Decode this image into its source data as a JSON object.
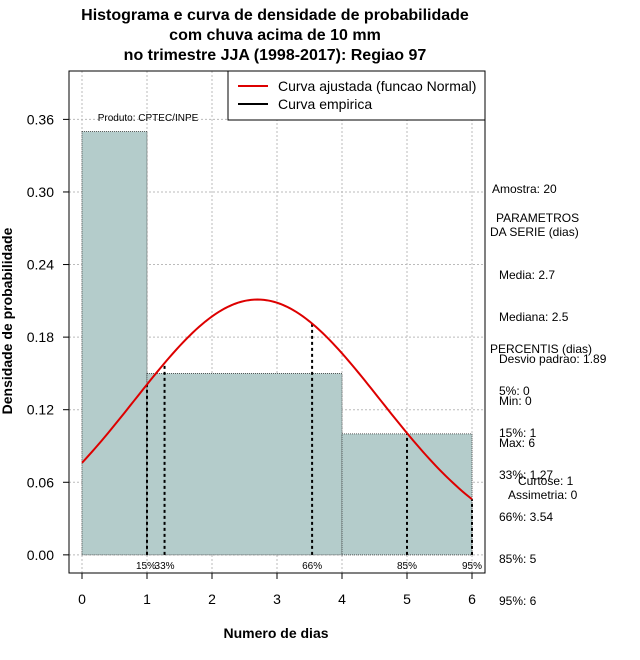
{
  "chart_data": {
    "type": "histogram",
    "title_lines": [
      "Histograma e curva de densidade de probabilidade",
      "com chuva acima de 10 mm",
      "no trimestre JJA (1998-2017): Regiao 97"
    ],
    "xlabel": "Numero de dias",
    "ylabel": "Densidade de probabilidade",
    "xlim": [
      -0.2,
      6.2
    ],
    "ylim": [
      -0.015,
      0.4
    ],
    "x_ticks": [
      0,
      1,
      2,
      3,
      4,
      5,
      6
    ],
    "y_ticks": [
      0.0,
      0.06,
      0.12,
      0.18,
      0.24,
      0.3,
      0.36
    ],
    "y_tick_labels": [
      "0.00",
      "0.06",
      "0.12",
      "0.18",
      "0.24",
      "0.30",
      "0.36"
    ],
    "grid": true,
    "bins": [
      {
        "from": 0,
        "to": 1,
        "density": 0.35
      },
      {
        "from": 1,
        "to": 4,
        "density": 0.15
      },
      {
        "from": 4,
        "to": 6,
        "density": 0.1
      }
    ],
    "normal_fit": {
      "mean": 2.7,
      "sd": 1.89,
      "x_from": 0,
      "x_to": 6
    },
    "percentile_lines": [
      {
        "label": "15%",
        "x": 1
      },
      {
        "label": "33%",
        "x": 1.27
      },
      {
        "label": "66%",
        "x": 3.54
      },
      {
        "label": "85%",
        "x": 5
      },
      {
        "label": "95%",
        "x": 6
      }
    ],
    "legend": [
      {
        "label": "Curva ajustada (funcao Normal)",
        "color": "#dd0000"
      },
      {
        "label": "Curva empirica",
        "color": "#000000"
      }
    ],
    "annotation": "Produto: CPTEC/INPE"
  },
  "side_panel": {
    "sample": "Amostra: 20",
    "params_title_1": "PARAMETROS",
    "params_title_2": "DA SERIE (dias)",
    "params": [
      "Media: 2.7",
      "Mediana: 2.5",
      "Desvio padrao: 1.89",
      "Min: 0",
      "Max: 6"
    ],
    "perc_title": "PERCENTIS (dias)",
    "percentiles": [
      "5%: 0",
      "15%: 1",
      "33%: 1.27",
      "66%: 3.54",
      "85%: 5",
      "95%: 6"
    ],
    "kurtosis": "Curtose: 1",
    "skewness": "Assimetria: 0"
  },
  "colors": {
    "bar_fill": "#b4cccb",
    "curve": "#dd0000",
    "grid": "#bbbbbb",
    "text": "#000000"
  }
}
